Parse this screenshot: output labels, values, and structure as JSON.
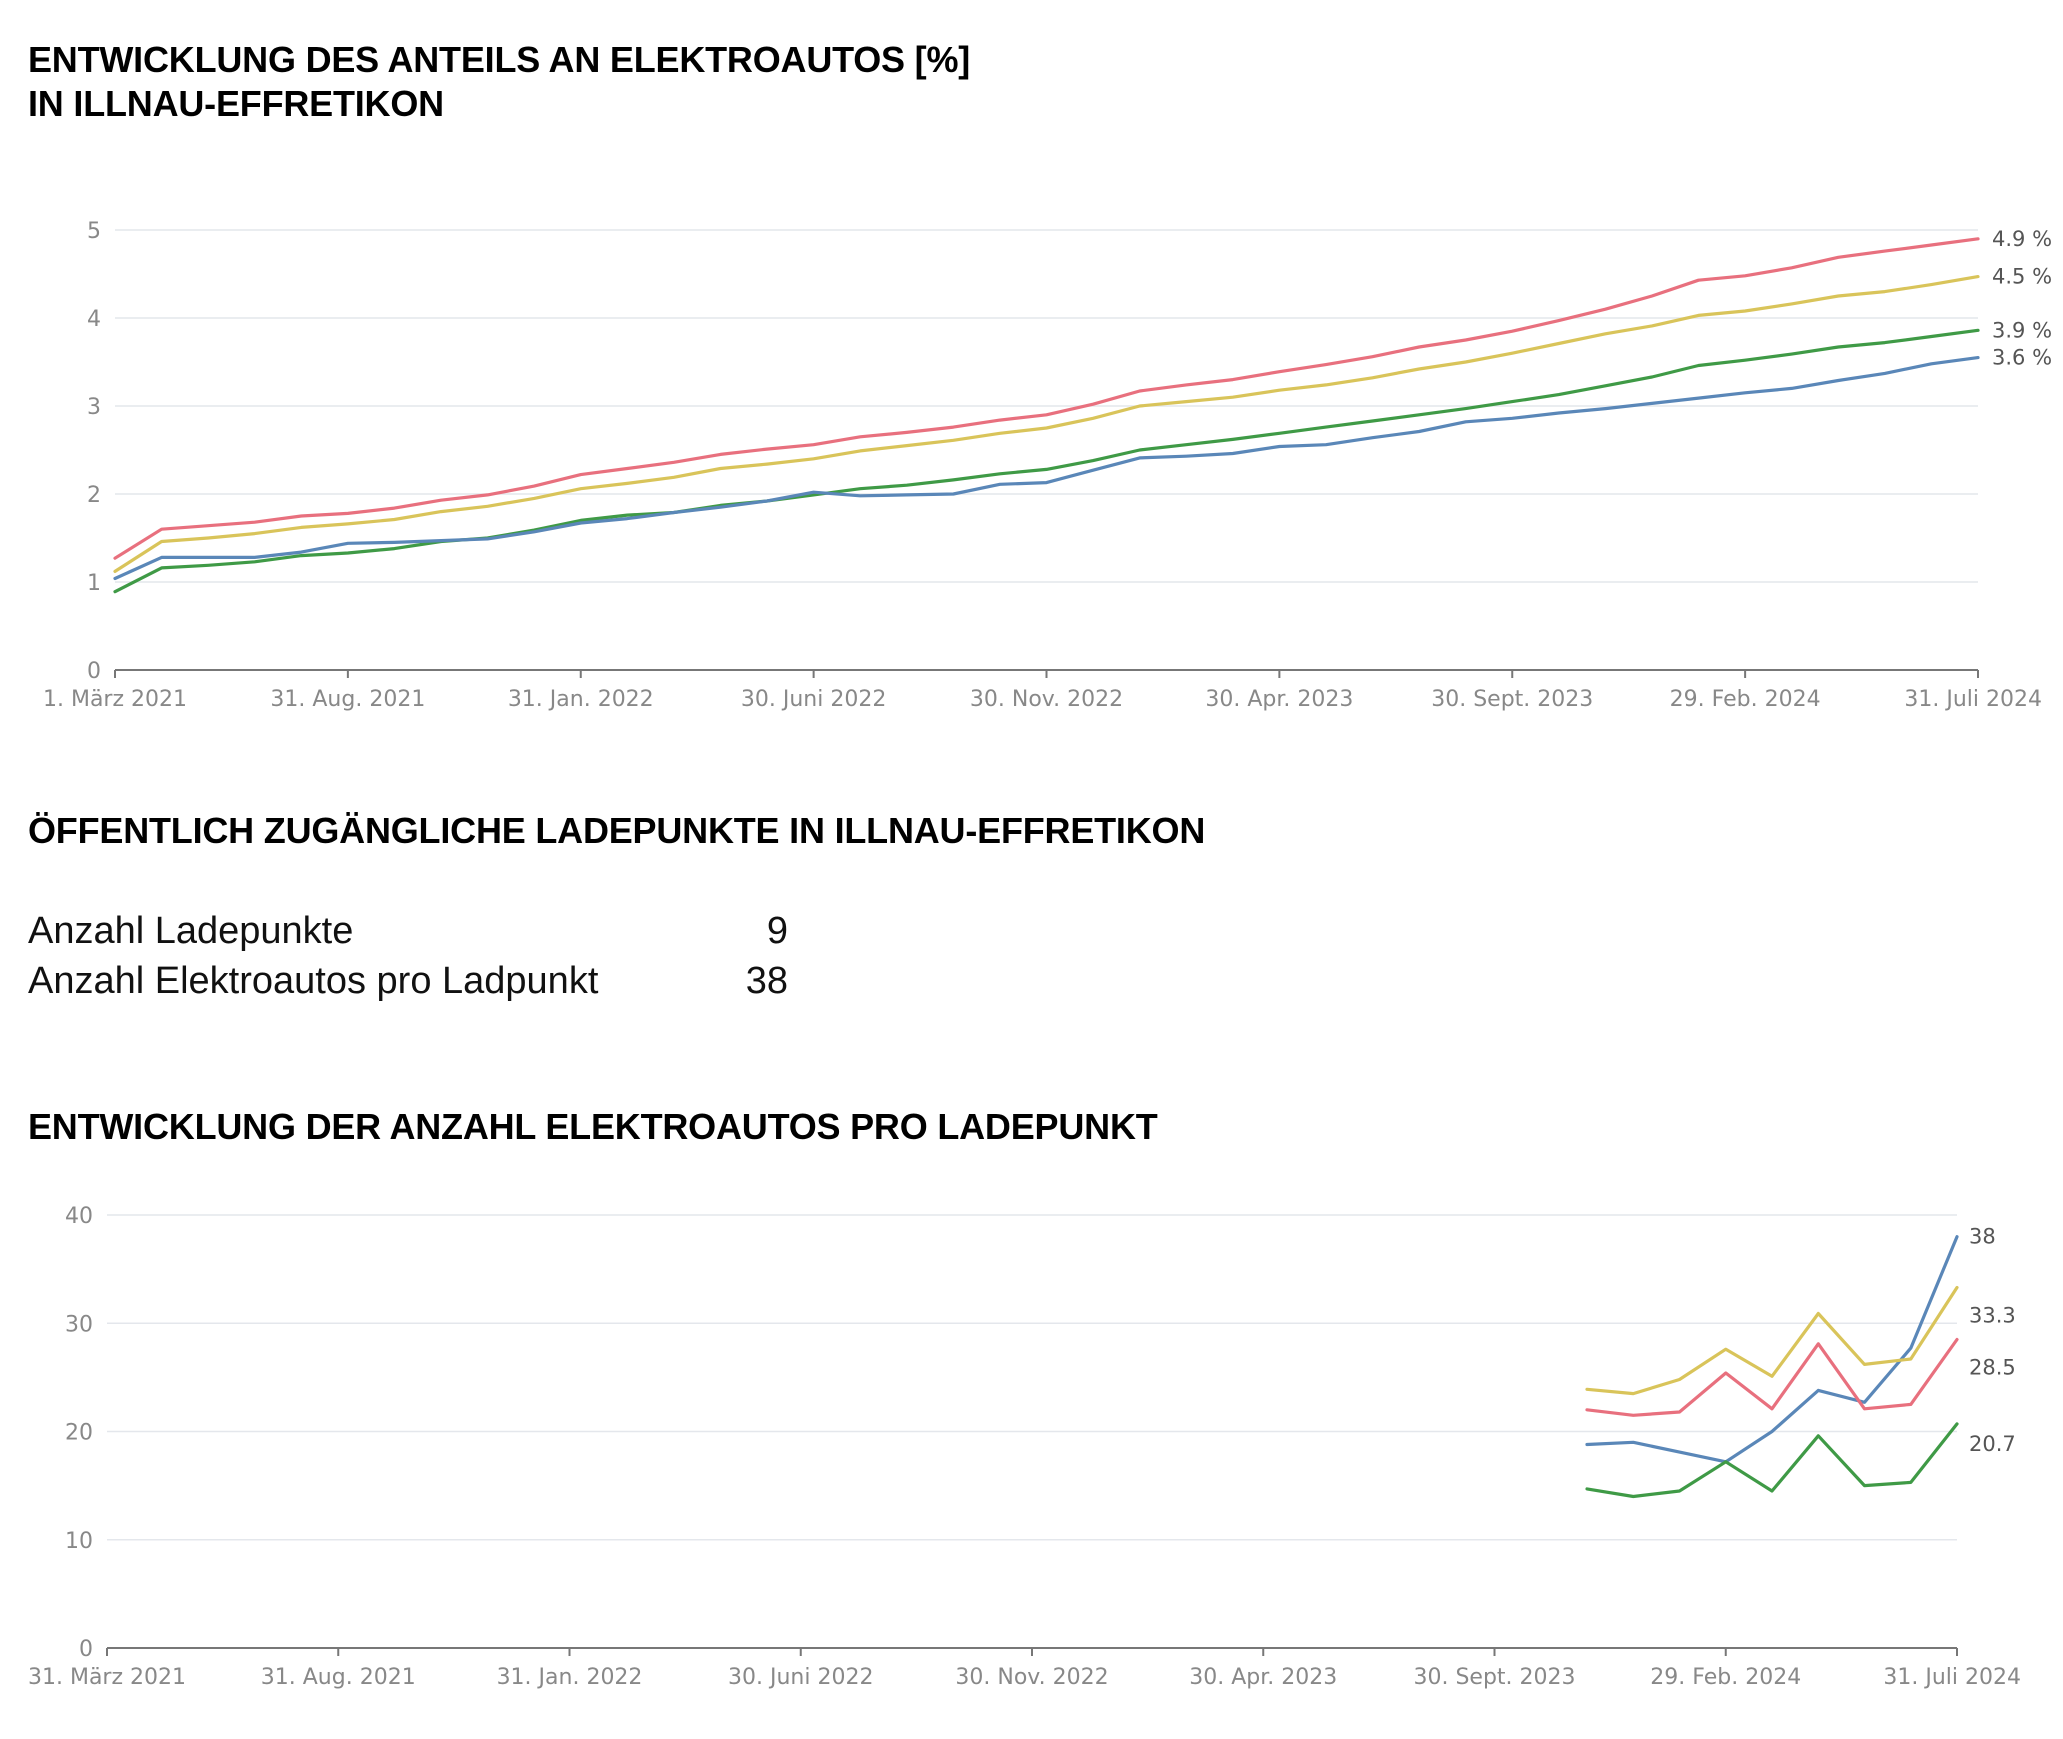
{
  "headings": {
    "chart1_line1": "ENTWICKLUNG DES ANTEILS AN ELEKTROAUTOS [%]",
    "chart1_line2": "IN ILLNAU-EFFRETIKON",
    "stats_title": "ÖFFENTLICH ZUGÄNGLICHE LADEPUNKTE IN ILLNAU-EFFRETIKON",
    "chart2_title": "ENTWICKLUNG DER ANZAHL ELEKTROAUTOS PRO LADEPUNKT"
  },
  "stats": [
    {
      "label": "Anzahl Ladepunkte",
      "value": "9"
    },
    {
      "label": "Anzahl Elektroautos pro Ladpunkt",
      "value": "38"
    }
  ],
  "chart_data": [
    {
      "type": "line",
      "title": "ENTWICKLUNG DES ANTEILS AN ELEKTROAUTOS [%] IN ILLNAU-EFFRETIKON",
      "xlabel": "",
      "ylabel": "",
      "ylim": [
        0,
        5
      ],
      "yticks": [
        "0",
        "1",
        "2",
        "3",
        "4",
        "5"
      ],
      "xticks": [
        "1. März 2021",
        "31. Aug. 2021",
        "31. Jan. 2022",
        "30. Juni 2022",
        "30. Nov. 2022",
        "30. Apr. 2023",
        "30. Sept. 2023",
        "29. Feb. 2024",
        "31. Juli 2024"
      ],
      "x": [
        "2021-03",
        "2021-04",
        "2021-05",
        "2021-06",
        "2021-07",
        "2021-08",
        "2021-09",
        "2021-10",
        "2021-11",
        "2021-12",
        "2022-01",
        "2022-02",
        "2022-03",
        "2022-04",
        "2022-05",
        "2022-06",
        "2022-07",
        "2022-08",
        "2022-09",
        "2022-10",
        "2022-11",
        "2022-12",
        "2023-01",
        "2023-02",
        "2023-03",
        "2023-04",
        "2023-05",
        "2023-06",
        "2023-07",
        "2023-08",
        "2023-09",
        "2023-10",
        "2023-11",
        "2023-12",
        "2024-01",
        "2024-02",
        "2024-03",
        "2024-04",
        "2024-05",
        "2024-06",
        "2024-07"
      ],
      "grid": true,
      "series": [
        {
          "color": "#e8707e",
          "end_label": "4.9 %",
          "values": [
            1.27,
            1.6,
            1.64,
            1.68,
            1.75,
            1.78,
            1.84,
            1.93,
            1.99,
            2.09,
            2.22,
            2.29,
            2.36,
            2.45,
            2.51,
            2.56,
            2.65,
            2.7,
            2.76,
            2.84,
            2.9,
            3.02,
            3.17,
            3.24,
            3.3,
            3.39,
            3.47,
            3.56,
            3.67,
            3.75,
            3.85,
            3.97,
            4.1,
            4.25,
            4.43,
            4.48,
            4.57,
            4.69,
            4.76,
            4.83,
            4.9
          ]
        },
        {
          "color": "#d9c45a",
          "end_label": "4.5 %",
          "values": [
            1.12,
            1.46,
            1.5,
            1.55,
            1.62,
            1.66,
            1.71,
            1.8,
            1.86,
            1.95,
            2.06,
            2.12,
            2.19,
            2.29,
            2.34,
            2.4,
            2.49,
            2.55,
            2.61,
            2.69,
            2.75,
            2.86,
            3.0,
            3.05,
            3.1,
            3.18,
            3.24,
            3.32,
            3.42,
            3.5,
            3.6,
            3.71,
            3.82,
            3.91,
            4.03,
            4.08,
            4.16,
            4.25,
            4.3,
            4.38,
            4.47
          ]
        },
        {
          "color": "#3f9a46",
          "end_label": "3.9 %",
          "values": [
            0.89,
            1.16,
            1.19,
            1.23,
            1.3,
            1.33,
            1.38,
            1.46,
            1.5,
            1.59,
            1.7,
            1.76,
            1.79,
            1.87,
            1.92,
            1.99,
            2.06,
            2.1,
            2.16,
            2.23,
            2.28,
            2.38,
            2.5,
            2.56,
            2.62,
            2.69,
            2.76,
            2.83,
            2.9,
            2.97,
            3.05,
            3.13,
            3.23,
            3.33,
            3.46,
            3.52,
            3.59,
            3.67,
            3.72,
            3.79,
            3.86
          ]
        },
        {
          "color": "#5a87b8",
          "end_label": "3.6 %",
          "values": [
            1.04,
            1.28,
            1.28,
            1.28,
            1.34,
            1.44,
            1.45,
            1.47,
            1.49,
            1.57,
            1.67,
            1.72,
            1.79,
            1.85,
            1.92,
            2.02,
            1.98,
            1.99,
            2.0,
            2.11,
            2.13,
            2.27,
            2.41,
            2.43,
            2.46,
            2.54,
            2.56,
            2.64,
            2.71,
            2.82,
            2.86,
            2.92,
            2.97,
            3.03,
            3.09,
            3.15,
            3.2,
            3.29,
            3.37,
            3.48,
            3.55
          ]
        }
      ]
    },
    {
      "type": "line",
      "title": "ENTWICKLUNG DER ANZAHL ELEKTROAUTOS PRO LADEPUNKT",
      "xlabel": "",
      "ylabel": "",
      "ylim": [
        0,
        40
      ],
      "yticks": [
        "0",
        "10",
        "20",
        "30",
        "40"
      ],
      "xticks": [
        "31. März 2021",
        "31. Aug. 2021",
        "31. Jan. 2022",
        "30. Juni 2022",
        "30. Nov. 2022",
        "30. Apr. 2023",
        "30. Sept. 2023",
        "29. Feb. 2024",
        "31. Juli 2024"
      ],
      "x": [
        "2023-11",
        "2023-12",
        "2024-01",
        "2024-02",
        "2024-03",
        "2024-04",
        "2024-05",
        "2024-06",
        "2024-07"
      ],
      "grid": true,
      "series": [
        {
          "color": "#5a87b8",
          "end_label": "38",
          "values": [
            18.8,
            19.0,
            18.1,
            17.2,
            20.0,
            23.8,
            22.7,
            27.7,
            38.0
          ]
        },
        {
          "color": "#d9c45a",
          "end_label": "33.3",
          "values": [
            23.9,
            23.5,
            24.8,
            27.6,
            25.1,
            30.9,
            26.2,
            26.7,
            33.3
          ]
        },
        {
          "color": "#e8707e",
          "end_label": "28.5",
          "values": [
            22.0,
            21.5,
            21.8,
            25.4,
            22.1,
            28.1,
            22.1,
            22.5,
            28.5
          ]
        },
        {
          "color": "#3f9a46",
          "end_label": "20.7",
          "values": [
            14.7,
            14.0,
            14.5,
            17.2,
            14.5,
            19.6,
            15.0,
            15.3,
            20.7
          ]
        }
      ]
    }
  ]
}
